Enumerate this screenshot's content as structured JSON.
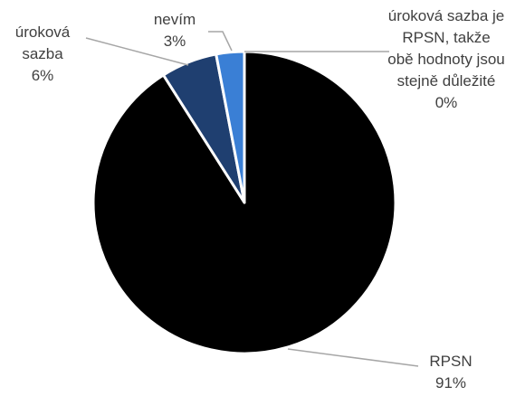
{
  "chart_data": {
    "type": "pie",
    "categories": [
      "úroková sazba je RPSN, takže obě hodnoty jsou stejně důležité",
      "RPSN",
      "úroková sazba",
      "nevím"
    ],
    "values": [
      0,
      91,
      6,
      3
    ],
    "value_labels": [
      "0%",
      "91%",
      "6%",
      "3%"
    ],
    "colors": [
      "#9dc3e6",
      "#000000",
      "#1f3f70",
      "#3a7fd5"
    ]
  }
}
